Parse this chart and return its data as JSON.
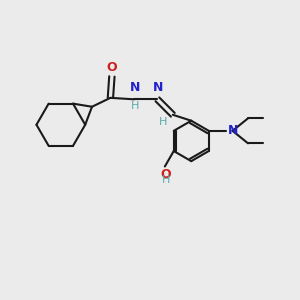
{
  "bg_color": "#ebebeb",
  "bond_color": "#1a1a1a",
  "N_color": "#2222cc",
  "O_color": "#cc2020",
  "H_color": "#5aaaaa",
  "font_size": 8,
  "line_width": 1.5,
  "xlim": [
    0,
    10
  ],
  "ylim": [
    0,
    10
  ]
}
